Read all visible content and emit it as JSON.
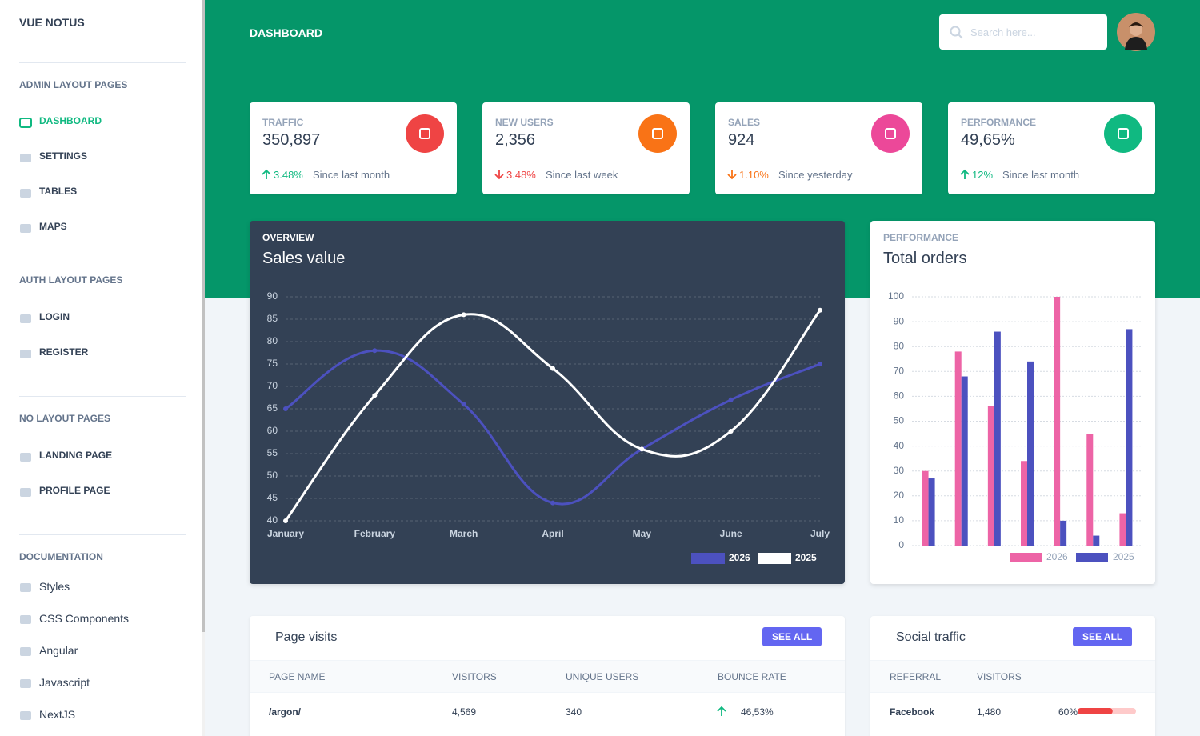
{
  "sidebar": {
    "brand": "VUE NOTUS",
    "sections": [
      {
        "heading": "ADMIN LAYOUT PAGES",
        "items": [
          {
            "label": "DASHBOARD",
            "active": true
          },
          {
            "label": "SETTINGS"
          },
          {
            "label": "TABLES"
          },
          {
            "label": "MAPS"
          }
        ]
      },
      {
        "heading": "AUTH LAYOUT PAGES",
        "items": [
          {
            "label": "LOGIN"
          },
          {
            "label": "REGISTER"
          }
        ]
      },
      {
        "heading": "NO LAYOUT PAGES",
        "items": [
          {
            "label": "LANDING PAGE"
          },
          {
            "label": "PROFILE PAGE"
          }
        ]
      },
      {
        "heading": "DOCUMENTATION",
        "items": [
          {
            "label": "Styles"
          },
          {
            "label": "CSS Components"
          },
          {
            "label": "Angular"
          },
          {
            "label": "Javascript"
          },
          {
            "label": "NextJS"
          }
        ]
      }
    ]
  },
  "header": {
    "title": "DASHBOARD",
    "search_placeholder": "Search here..."
  },
  "stats": [
    {
      "label": "TRAFFIC",
      "value": "350,897",
      "change": "3.48%",
      "period": "Since last month",
      "trend": "up",
      "change_color": "#10b981",
      "icon_color": "#ef4444"
    },
    {
      "label": "NEW USERS",
      "value": "2,356",
      "change": "3.48%",
      "period": "Since last week",
      "trend": "down",
      "change_color": "#ef4444",
      "icon_color": "#f97316"
    },
    {
      "label": "SALES",
      "value": "924",
      "change": "1.10%",
      "period": "Since yesterday",
      "trend": "down",
      "change_color": "#f97316",
      "icon_color": "#ec4899"
    },
    {
      "label": "PERFORMANCE",
      "value": "49,65%",
      "change": "12%",
      "period": "Since last month",
      "trend": "up",
      "change_color": "#10b981",
      "icon_color": "#10b981"
    }
  ],
  "chart_data": [
    {
      "type": "line",
      "subtitle": "OVERVIEW",
      "title": "Sales value",
      "categories": [
        "January",
        "February",
        "March",
        "April",
        "May",
        "June",
        "July"
      ],
      "series": [
        {
          "name": "2026",
          "color": "#4c51bf",
          "values": [
            65,
            78,
            66,
            44,
            56,
            67,
            75
          ]
        },
        {
          "name": "2025",
          "color": "#ffffff",
          "values": [
            40,
            68,
            86,
            74,
            56,
            60,
            87
          ]
        }
      ],
      "ylim": [
        40,
        90
      ],
      "yticks": [
        40,
        45,
        50,
        55,
        60,
        65,
        70,
        75,
        80,
        85,
        90
      ],
      "grid": true,
      "legend": "bottom-right"
    },
    {
      "type": "bar",
      "subtitle": "PERFORMANCE",
      "title": "Total orders",
      "categories": [
        null,
        null,
        null,
        null,
        null,
        null,
        null
      ],
      "series": [
        {
          "name": "2026",
          "color": "#ed64a6",
          "values": [
            30,
            78,
            56,
            34,
            100,
            45,
            13
          ]
        },
        {
          "name": "2025",
          "color": "#4c51bf",
          "values": [
            27,
            68,
            86,
            74,
            10,
            4,
            87
          ]
        }
      ],
      "ylim": [
        0,
        100
      ],
      "yticks": [
        0,
        10,
        20,
        30,
        40,
        50,
        60,
        70,
        80,
        90,
        100
      ],
      "grid": true,
      "legend": "bottom-right"
    }
  ],
  "page_visits": {
    "title": "Page visits",
    "button": "SEE ALL",
    "columns": [
      "PAGE NAME",
      "VISITORS",
      "UNIQUE USERS",
      "BOUNCE RATE"
    ],
    "rows": [
      {
        "page": "/argon/",
        "visitors": "4,569",
        "unique_users": "340",
        "bounce_rate": "46,53%",
        "trend": "up"
      }
    ]
  },
  "social_traffic": {
    "title": "Social traffic",
    "button": "SEE ALL",
    "columns": [
      "REFERRAL",
      "VISITORS"
    ],
    "rows": [
      {
        "referral": "Facebook",
        "visitors": "1,480",
        "progress": {
          "value": 60,
          "label": "60%"
        },
        "color": "#ef4444"
      }
    ]
  }
}
